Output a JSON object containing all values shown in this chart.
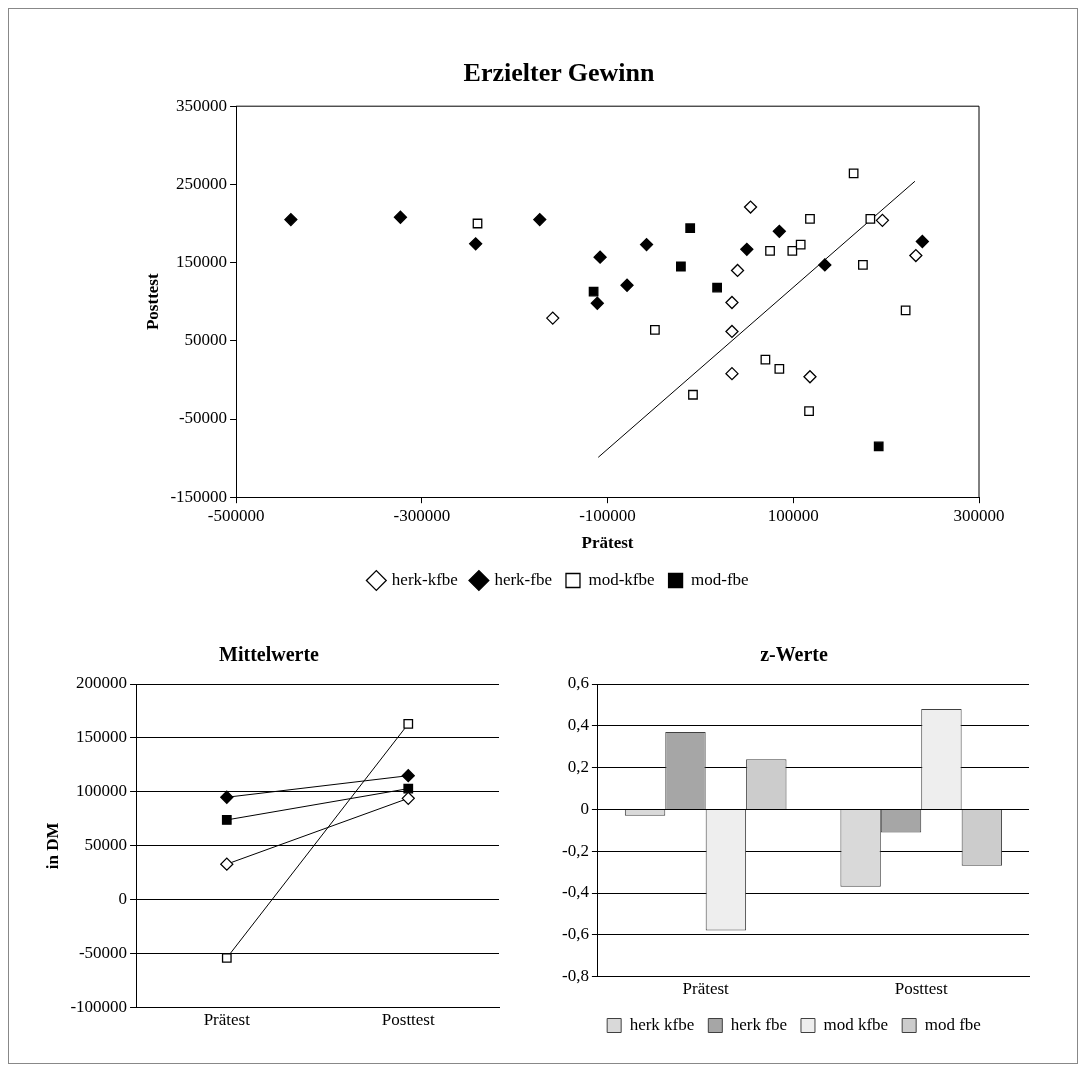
{
  "chart_data": [
    {
      "type": "scatter",
      "title": "Erzielter Gewinn",
      "xlabel": "Prätest",
      "ylabel": "Posttest",
      "xlim": [
        -500000,
        300000
      ],
      "xticks": [
        -500000,
        -300000,
        -100000,
        100000,
        300000
      ],
      "ylim": [
        -150000,
        350000
      ],
      "yticks": [
        -150000,
        -50000,
        50000,
        150000,
        250000,
        350000
      ],
      "grid": false,
      "legend": "bottom",
      "series": [
        {
          "name": "herk-kfbe",
          "color": "#ffffff",
          "marker": "diamond",
          "x": [
            -159000,
            54000,
            40000,
            34000,
            34000,
            34000,
            118000,
            196000,
            232000
          ],
          "values": [
            79000,
            221000,
            140000,
            99000,
            62000,
            8000,
            4000,
            204000,
            159000
          ]
        },
        {
          "name": "herk-fbe",
          "color": "#000000",
          "marker": "diamond",
          "x": [
            -441000,
            -323000,
            -242000,
            -173000,
            -108000,
            -111000,
            -79000,
            -58000,
            50000,
            85000,
            134000,
            239000
          ],
          "values": [
            205000,
            208000,
            174000,
            205000,
            157000,
            98000,
            121000,
            173000,
            167000,
            190000,
            147000,
            177000
          ]
        },
        {
          "name": "mod-kfbe",
          "color": "#ffffff",
          "marker": "square",
          "x": [
            -240000,
            -49000,
            -8000,
            75000,
            99000,
            108000,
            118000,
            165000,
            183000,
            175000,
            221000,
            70000,
            85000,
            117000
          ],
          "values": [
            200000,
            64000,
            -19000,
            165000,
            165000,
            173000,
            206000,
            264000,
            206000,
            147000,
            89000,
            26000,
            14000,
            -40000
          ]
        },
        {
          "name": "mod-fbe",
          "color": "#000000",
          "marker": "square",
          "x": [
            -115000,
            -11000,
            -21000,
            18000,
            192000
          ],
          "values": [
            113000,
            194000,
            145000,
            118000,
            -85000
          ]
        },
        {
          "type": "line",
          "color": "#000000",
          "marker": "none",
          "x": [
            -110000,
            231000
          ],
          "values": [
            -99000,
            254000
          ]
        }
      ]
    },
    {
      "type": "line",
      "title": "Mittelwerte",
      "ylabel": "in DM",
      "categories": [
        "Prätest",
        "Posttest"
      ],
      "ylim": [
        -100000,
        200000
      ],
      "yticks": [
        -100000,
        -50000,
        0,
        50000,
        100000,
        150000,
        200000
      ],
      "grid": "y",
      "legend": false,
      "series": [
        {
          "color": "#ffffff",
          "marker": "diamond",
          "values": [
            33000,
            94000
          ]
        },
        {
          "color": "#000000",
          "marker": "diamond",
          "values": [
            95000,
            115000
          ]
        },
        {
          "color": "#ffffff",
          "marker": "square",
          "values": [
            -54000,
            163000
          ]
        },
        {
          "color": "#000000",
          "marker": "square",
          "values": [
            74000,
            103000
          ]
        }
      ]
    },
    {
      "type": "bar",
      "title": "z-Werte",
      "categories": [
        "Prätest",
        "Posttest"
      ],
      "ylim": [
        -0.8,
        0.6
      ],
      "yticks": [
        {
          "value": -0.8,
          "label": "-0,8"
        },
        {
          "value": -0.6,
          "label": "-0,6"
        },
        {
          "value": -0.4,
          "label": "-0,4"
        },
        {
          "value": -0.2,
          "label": "-0,2"
        },
        {
          "value": 0,
          "label": "0"
        },
        {
          "value": 0.2,
          "label": "0,2"
        },
        {
          "value": 0.4,
          "label": "0,4"
        },
        {
          "value": 0.6,
          "label": "0,6"
        }
      ],
      "grid": "y",
      "legend": "bottom",
      "series": [
        {
          "name": "herk kfbe",
          "color": "#d9d9d9",
          "values": [
            -0.03,
            -0.37
          ]
        },
        {
          "name": "herk fbe",
          "color": "#a6a6a6",
          "values": [
            0.37,
            -0.11
          ]
        },
        {
          "name": "mod kfbe",
          "color": "#eeeeee",
          "values": [
            -0.58,
            0.48
          ]
        },
        {
          "name": "mod fbe",
          "color": "#cccccc",
          "values": [
            0.24,
            -0.27
          ]
        }
      ]
    }
  ]
}
